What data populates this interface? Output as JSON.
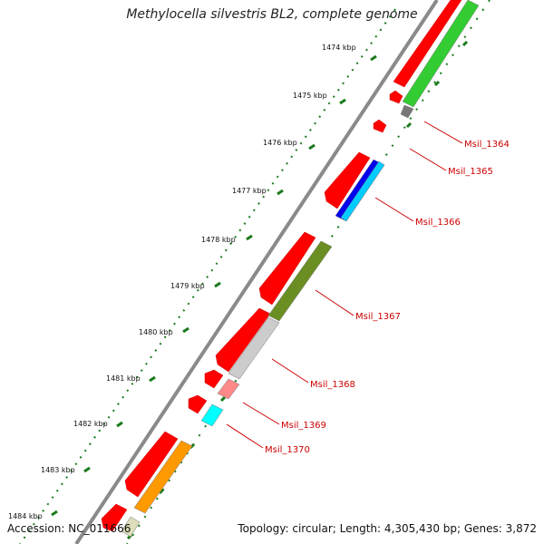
{
  "title": "Methylocella silvestris BL2, complete genome",
  "ticks": [
    "1474 kbp",
    "1475 kbp",
    "1476 kbp",
    "1477 kbp",
    "1478 kbp",
    "1479 kbp",
    "1480 kbp",
    "1481 kbp",
    "1482 kbp",
    "1483 kbp",
    "1484 kbp"
  ],
  "genes": [
    "Msil_1364",
    "Msil_1365",
    "Msil_1366",
    "Msil_1367",
    "Msil_1368",
    "Msil_1369",
    "Msil_1370"
  ],
  "colors": {
    "cds": "#ff0000",
    "backbone": "#999999",
    "tick": "#1a7a1a",
    "label": "#cc0000"
  },
  "footer": {
    "accession": "Accession: NC_011666",
    "summary": "Topology: circular; Length: 4,305,430 bp; Genes: 3,872"
  }
}
